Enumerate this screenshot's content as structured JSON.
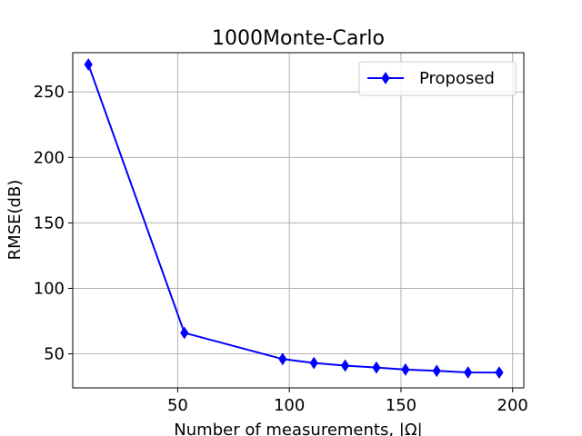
{
  "chart_data": {
    "type": "line",
    "title": "1000Monte-Carlo",
    "xlabel": "Number of measurements, |Ω|",
    "ylabel": "RMSE(dB)",
    "xlim": [
      3,
      205
    ],
    "ylim": [
      24,
      280
    ],
    "xticks": [
      50,
      100,
      150,
      200
    ],
    "yticks": [
      50,
      100,
      150,
      200,
      250
    ],
    "grid": true,
    "legend_position": "top-right",
    "series": [
      {
        "name": "Proposed",
        "color": "#0000ff",
        "marker": "diamond",
        "x": [
          10,
          53,
          97,
          111,
          125,
          139,
          152,
          166,
          180,
          194
        ],
        "y": [
          271,
          66,
          46,
          43,
          41,
          39.5,
          38,
          37,
          35.8,
          35.7
        ]
      }
    ]
  }
}
